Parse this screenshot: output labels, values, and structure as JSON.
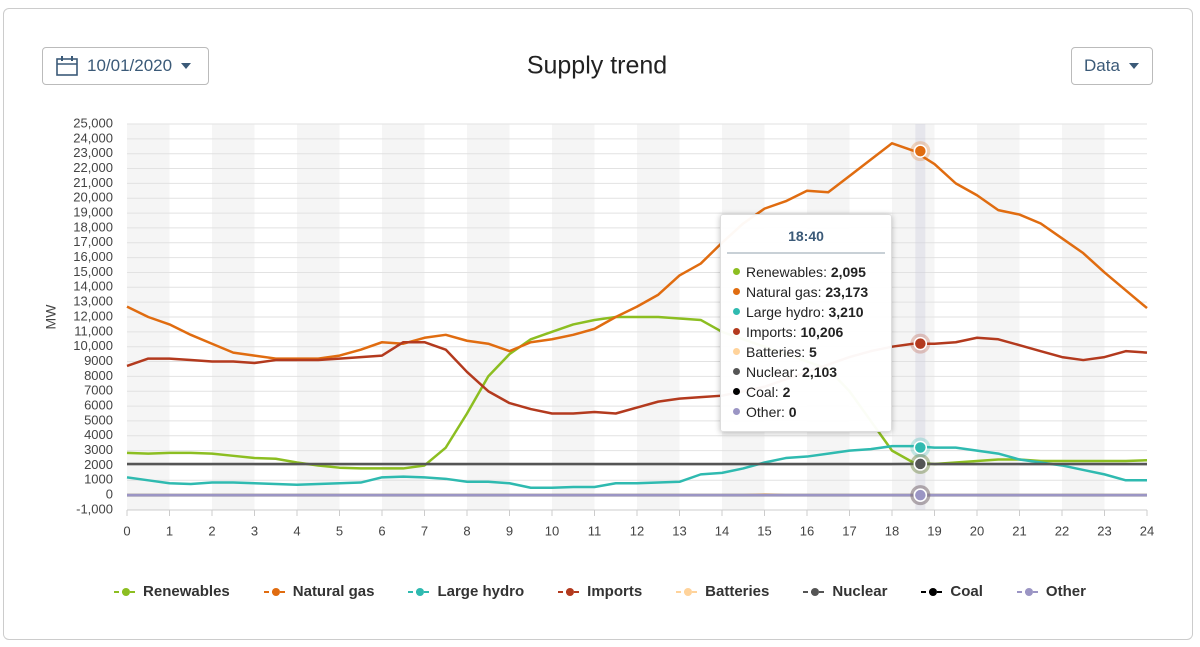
{
  "date_button": "10/01/2020",
  "data_button": "Data",
  "chart_data": {
    "type": "line",
    "title": "Supply trend",
    "y_label": "MW",
    "x": [
      0,
      0.5,
      1,
      1.5,
      2,
      2.5,
      3,
      3.5,
      4,
      4.5,
      5,
      5.5,
      6,
      6.5,
      7,
      7.5,
      8,
      8.5,
      9,
      9.5,
      10,
      10.5,
      11,
      11.5,
      12,
      12.5,
      13,
      13.5,
      14,
      14.5,
      15,
      15.5,
      16,
      16.5,
      17,
      17.5,
      18,
      18.5,
      19,
      19.5,
      20,
      20.5,
      21,
      21.5,
      22,
      22.5,
      23,
      23.5,
      24
    ],
    "xlim": [
      0,
      24
    ],
    "xticks": [
      0,
      1,
      2,
      3,
      4,
      5,
      6,
      7,
      8,
      9,
      10,
      11,
      12,
      13,
      14,
      15,
      16,
      17,
      18,
      19,
      20,
      21,
      22,
      23,
      24
    ],
    "ylim": [
      -1000,
      25000
    ],
    "yticks": [
      {
        "value": -1000,
        "label": "-1,000"
      },
      0,
      1000,
      2000,
      3000,
      4000,
      5000,
      6000,
      7000,
      8000,
      9000,
      {
        "value": 10000,
        "label": "10,000"
      },
      {
        "value": 11000,
        "label": "11,000"
      },
      {
        "value": 12000,
        "label": "12,000"
      },
      {
        "value": 13000,
        "label": "13,000"
      },
      {
        "value": 14000,
        "label": "14,000"
      },
      {
        "value": 15000,
        "label": "15,000"
      },
      {
        "value": 16000,
        "label": "16,000"
      },
      {
        "value": 17000,
        "label": "17,000"
      },
      {
        "value": 18000,
        "label": "18,000"
      },
      {
        "value": 19000,
        "label": "19,000"
      },
      {
        "value": 20000,
        "label": "20,000"
      },
      {
        "value": 21000,
        "label": "21,000"
      },
      {
        "value": 22000,
        "label": "22,000"
      },
      {
        "value": 23000,
        "label": "23,000"
      },
      {
        "value": 24000,
        "label": "24,000"
      },
      {
        "value": 25000,
        "label": "25,000"
      }
    ],
    "grid": true,
    "legend": "bottom",
    "series": [
      {
        "name": "Renewables",
        "color": "#8cbe21",
        "values": [
          2850,
          2800,
          2850,
          2850,
          2800,
          2650,
          2500,
          2450,
          2200,
          2000,
          1850,
          1800,
          1800,
          1800,
          2000,
          3200,
          5500,
          8000,
          9500,
          10500,
          11000,
          11500,
          11800,
          12000,
          12000,
          12000,
          11900,
          11800,
          11000,
          10500,
          10000,
          9500,
          9000,
          8500,
          7000,
          5000,
          3000,
          2200,
          2100,
          2200,
          2300,
          2400,
          2400,
          2300,
          2300,
          2300,
          2300,
          2300,
          2350
        ]
      },
      {
        "name": "Natural gas",
        "color": "#e06c10",
        "values": [
          12700,
          12000,
          11500,
          10800,
          10200,
          9600,
          9400,
          9200,
          9200,
          9200,
          9400,
          9800,
          10300,
          10200,
          10600,
          10800,
          10400,
          10200,
          9700,
          10300,
          10500,
          10800,
          11200,
          12000,
          12700,
          13500,
          14800,
          15600,
          17000,
          18300,
          19300,
          19800,
          20500,
          20400,
          21500,
          22600,
          23700,
          23200,
          22300,
          21000,
          20200,
          19200,
          18900,
          18300,
          17300,
          16300,
          15000,
          13800,
          12600
        ]
      },
      {
        "name": "Large hydro",
        "color": "#2fbab0",
        "values": [
          1200,
          1000,
          800,
          750,
          850,
          850,
          800,
          750,
          700,
          750,
          800,
          850,
          1200,
          1250,
          1200,
          1100,
          900,
          900,
          800,
          500,
          500,
          550,
          550,
          800,
          800,
          850,
          900,
          1400,
          1500,
          1800,
          2200,
          2500,
          2600,
          2800,
          3000,
          3100,
          3300,
          3300,
          3200,
          3200,
          3000,
          2800,
          2400,
          2200,
          2000,
          1700,
          1400,
          1000,
          1000
        ]
      },
      {
        "name": "Imports",
        "color": "#b33a1e",
        "values": [
          8700,
          9200,
          9200,
          9100,
          9000,
          9000,
          8900,
          9100,
          9100,
          9100,
          9200,
          9300,
          9400,
          10300,
          10300,
          9800,
          8300,
          7000,
          6200,
          5800,
          5500,
          5500,
          5600,
          5500,
          5900,
          6300,
          6500,
          6600,
          6700,
          7000,
          7300,
          7800,
          8300,
          8800,
          9300,
          9700,
          10000,
          10200,
          10200,
          10300,
          10600,
          10500,
          10100,
          9700,
          9300,
          9100,
          9300,
          9700,
          9600
        ]
      },
      {
        "name": "Batteries",
        "color": "#ffd39b",
        "values": [
          0,
          0,
          0,
          0,
          0,
          0,
          0,
          0,
          0,
          0,
          0,
          0,
          0,
          0,
          0,
          0,
          0,
          0,
          0,
          0,
          0,
          0,
          0,
          0,
          0,
          0,
          0,
          0,
          0,
          0,
          50,
          0,
          0,
          0,
          0,
          0,
          0,
          5,
          0,
          0,
          0,
          0,
          0,
          0,
          0,
          0,
          0,
          0,
          0
        ]
      },
      {
        "name": "Nuclear",
        "color": "#555555",
        "values": [
          2100,
          2100,
          2100,
          2100,
          2100,
          2100,
          2100,
          2100,
          2100,
          2100,
          2100,
          2100,
          2100,
          2100,
          2100,
          2100,
          2100,
          2100,
          2100,
          2100,
          2100,
          2100,
          2100,
          2100,
          2100,
          2100,
          2100,
          2100,
          2100,
          2100,
          2100,
          2100,
          2100,
          2100,
          2100,
          2100,
          2100,
          2103,
          2100,
          2100,
          2100,
          2100,
          2100,
          2100,
          2100,
          2100,
          2100,
          2100,
          2100
        ]
      },
      {
        "name": "Coal",
        "color": "#000000",
        "values": [
          2,
          2,
          2,
          2,
          2,
          2,
          2,
          2,
          2,
          2,
          2,
          2,
          2,
          2,
          2,
          2,
          2,
          2,
          2,
          2,
          2,
          2,
          2,
          2,
          2,
          2,
          2,
          2,
          2,
          2,
          2,
          2,
          2,
          2,
          2,
          2,
          2,
          2,
          2,
          2,
          2,
          2,
          2,
          2,
          2,
          2,
          2,
          2,
          2
        ]
      },
      {
        "name": "Other",
        "color": "#9b95c4",
        "values": [
          0,
          0,
          0,
          0,
          0,
          0,
          0,
          0,
          0,
          0,
          0,
          0,
          0,
          0,
          0,
          0,
          0,
          0,
          0,
          0,
          0,
          0,
          0,
          0,
          0,
          0,
          0,
          0,
          0,
          0,
          0,
          0,
          0,
          0,
          0,
          0,
          0,
          0,
          0,
          0,
          0,
          0,
          0,
          0,
          0,
          0,
          0,
          0,
          0
        ]
      }
    ],
    "tooltip": {
      "title": "18:40",
      "values": [
        2095,
        23173,
        3210,
        10206,
        5,
        2103,
        2,
        0
      ],
      "value_labels": [
        "2,095",
        "23,173",
        "3,210",
        "10,206",
        "5",
        "2,103",
        "2",
        "0"
      ]
    }
  }
}
